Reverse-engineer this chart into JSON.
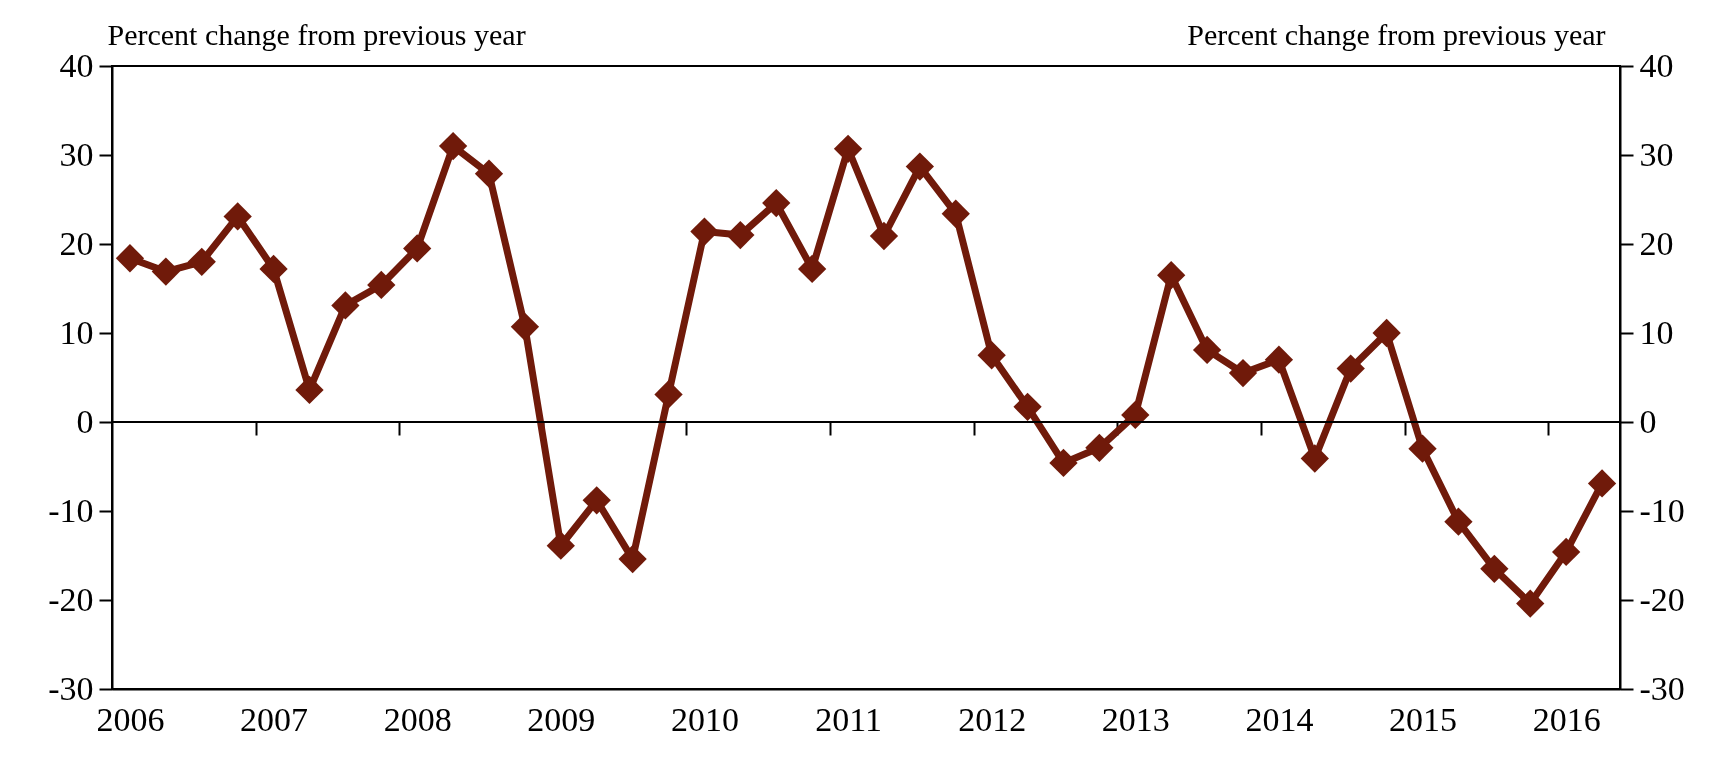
{
  "chart_data": {
    "type": "line",
    "ylabel": "Percent change from previous year",
    "y2label": "Percent change from previous year",
    "x": [
      2006.125,
      2006.375,
      2006.625,
      2006.875,
      2007.125,
      2007.375,
      2007.625,
      2007.875,
      2008.125,
      2008.375,
      2008.625,
      2008.875,
      2009.125,
      2009.375,
      2009.625,
      2009.875,
      2010.125,
      2010.375,
      2010.625,
      2010.875,
      2011.125,
      2011.375,
      2011.625,
      2011.875,
      2012.125,
      2012.375,
      2012.625,
      2012.875,
      2013.125,
      2013.375,
      2013.625,
      2013.875,
      2014.125,
      2014.375,
      2014.625,
      2014.875,
      2015.125,
      2015.375,
      2015.625,
      2015.875,
      2016.125,
      2016.375
    ],
    "series": [
      {
        "color": "#701a0a",
        "values": [
          18.4,
          16.9,
          18.0,
          23.1,
          17.2,
          3.6,
          13.1,
          15.4,
          19.5,
          31.0,
          27.9,
          10.7,
          -13.9,
          -8.8,
          -15.4,
          3.1,
          21.4,
          21.0,
          24.6,
          17.2,
          30.7,
          20.9,
          28.7,
          23.4,
          7.5,
          1.7,
          -4.6,
          -2.9,
          0.8,
          16.5,
          8.1,
          5.5,
          7.0,
          -4.1,
          6.0,
          10.0,
          -3.0,
          -11.2,
          -16.5,
          -20.4,
          -14.6,
          -6.9
        ]
      }
    ],
    "xlim": [
      2006,
      2016.5
    ],
    "xticks": [
      {
        "value": 2006.125,
        "label": "2006"
      },
      {
        "value": 2007.125,
        "label": "2007"
      },
      {
        "value": 2008.125,
        "label": "2008"
      },
      {
        "value": 2009.125,
        "label": "2009"
      },
      {
        "value": 2010.125,
        "label": "2010"
      },
      {
        "value": 2011.125,
        "label": "2011"
      },
      {
        "value": 2012.125,
        "label": "2012"
      },
      {
        "value": 2013.125,
        "label": "2013"
      },
      {
        "value": 2014.125,
        "label": "2014"
      },
      {
        "value": 2015.125,
        "label": "2015"
      },
      {
        "value": 2016.125,
        "label": "2016"
      },
      {
        "value": 2007,
        "label": null
      },
      {
        "value": 2008,
        "label": null
      },
      {
        "value": 2009,
        "label": null
      },
      {
        "value": 2010,
        "label": null
      },
      {
        "value": 2011,
        "label": null
      },
      {
        "value": 2012,
        "label": null
      },
      {
        "value": 2013,
        "label": null
      },
      {
        "value": 2014,
        "label": null
      },
      {
        "value": 2015,
        "label": null
      },
      {
        "value": 2016,
        "label": null
      }
    ],
    "ylim": [
      -30,
      40
    ],
    "yticks": [
      -30,
      -20,
      -10,
      0,
      10,
      20,
      30,
      40
    ],
    "y2lim": [
      -30,
      40
    ],
    "y2ticks": [
      -30,
      -20,
      -10,
      0,
      10,
      20,
      30,
      40
    ],
    "ref_lines": [
      {
        "axis": "y",
        "value": 0
      }
    ],
    "marker": "diamond",
    "line_style": "solid"
  }
}
